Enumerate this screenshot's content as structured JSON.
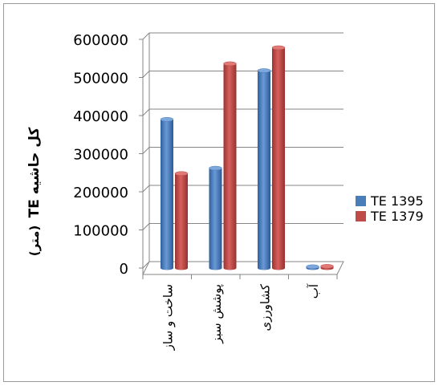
{
  "chart_data": {
    "type": "bar",
    "title": "",
    "ylabel_main": "TE کل حاشیه",
    "ylabel_unit": "(متر)",
    "xlabel": "",
    "ylim": [
      0,
      600000
    ],
    "yticks": [
      0,
      100000,
      200000,
      300000,
      400000,
      500000,
      600000
    ],
    "ytick_labels": [
      "0",
      "100000",
      "200000",
      "300000",
      "400000",
      "500000",
      "600000"
    ],
    "categories": [
      "ساخت و ساز",
      "پوشش سبز",
      "کشاورزی",
      "آب"
    ],
    "series": [
      {
        "name": "TE 1395",
        "values": [
          390000,
          262000,
          518000,
          3500
        ]
      },
      {
        "name": "TE 1379",
        "values": [
          248000,
          536000,
          578000,
          4500
        ]
      }
    ],
    "grid": true,
    "legend_position": "right",
    "colors": {
      "series_1": "#4a7ebb",
      "series_2": "#be4b48",
      "axis": "#868686",
      "grid": "#868686",
      "text": "#000000"
    }
  }
}
